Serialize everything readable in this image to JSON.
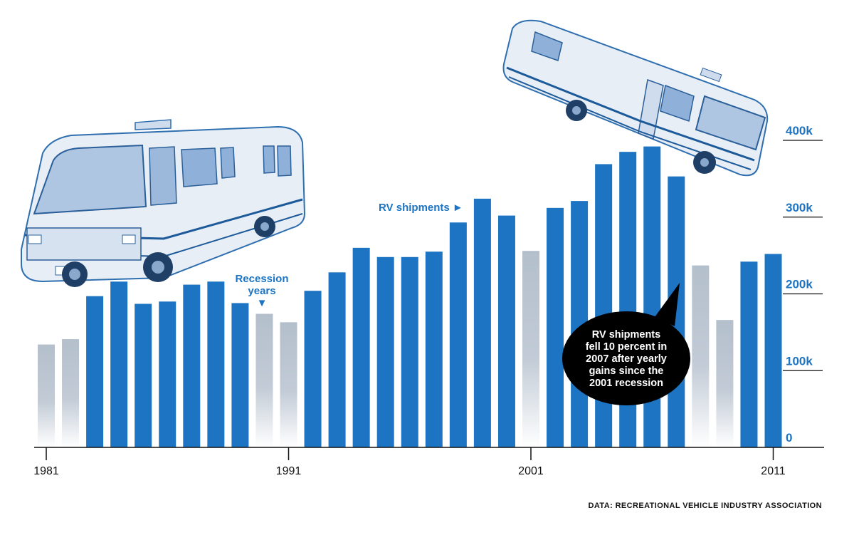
{
  "chart_data": {
    "type": "bar",
    "title": "",
    "xlabel": "",
    "ylabel": "",
    "ylim": [
      0,
      400000
    ],
    "y_ticks": [
      {
        "value": 0,
        "label": "0"
      },
      {
        "value": 100000,
        "label": "100k"
      },
      {
        "value": 200000,
        "label": "200k"
      },
      {
        "value": 300000,
        "label": "300k"
      },
      {
        "value": 400000,
        "label": "400k"
      }
    ],
    "x_ticks": [
      {
        "year": 1981,
        "label": "1981"
      },
      {
        "year": 1991,
        "label": "1991"
      },
      {
        "year": 2001,
        "label": "2001"
      },
      {
        "year": 2011,
        "label": "2011"
      }
    ],
    "categories": [
      1981,
      1982,
      1983,
      1984,
      1985,
      1986,
      1987,
      1988,
      1989,
      1990,
      1991,
      1992,
      1993,
      1994,
      1995,
      1996,
      1997,
      1998,
      1999,
      2000,
      2001,
      2002,
      2003,
      2004,
      2005,
      2006,
      2007,
      2008,
      2009,
      2010,
      2011
    ],
    "values": [
      134000,
      141000,
      197000,
      216000,
      187000,
      190000,
      212000,
      216000,
      188000,
      174000,
      163000,
      204000,
      228000,
      260000,
      248000,
      248000,
      255000,
      293000,
      324000,
      302000,
      256000,
      312000,
      321000,
      369000,
      385000,
      392000,
      353000,
      237000,
      166000,
      242000,
      252000
    ],
    "recession": [
      true,
      true,
      false,
      false,
      false,
      false,
      false,
      false,
      false,
      true,
      true,
      false,
      false,
      false,
      false,
      false,
      false,
      false,
      false,
      false,
      true,
      false,
      false,
      false,
      false,
      false,
      false,
      true,
      true,
      false,
      false
    ],
    "colors": {
      "shipment": "#1d74c2",
      "recession": "#b4bfcc",
      "bubble": "#000000"
    },
    "annotations": {
      "rv_shipments": "RV shipments ►",
      "recession_line1": "Recession",
      "recession_line2": "years",
      "recession_arrow": "▼",
      "bubble_lines": [
        "RV shipments",
        "fell 10 percent in",
        "2007 after yearly",
        "gains since the",
        "2001 recession"
      ]
    },
    "source": "DATA: RECREATIONAL VEHICLE INDUSTRY ASSOCIATION"
  }
}
